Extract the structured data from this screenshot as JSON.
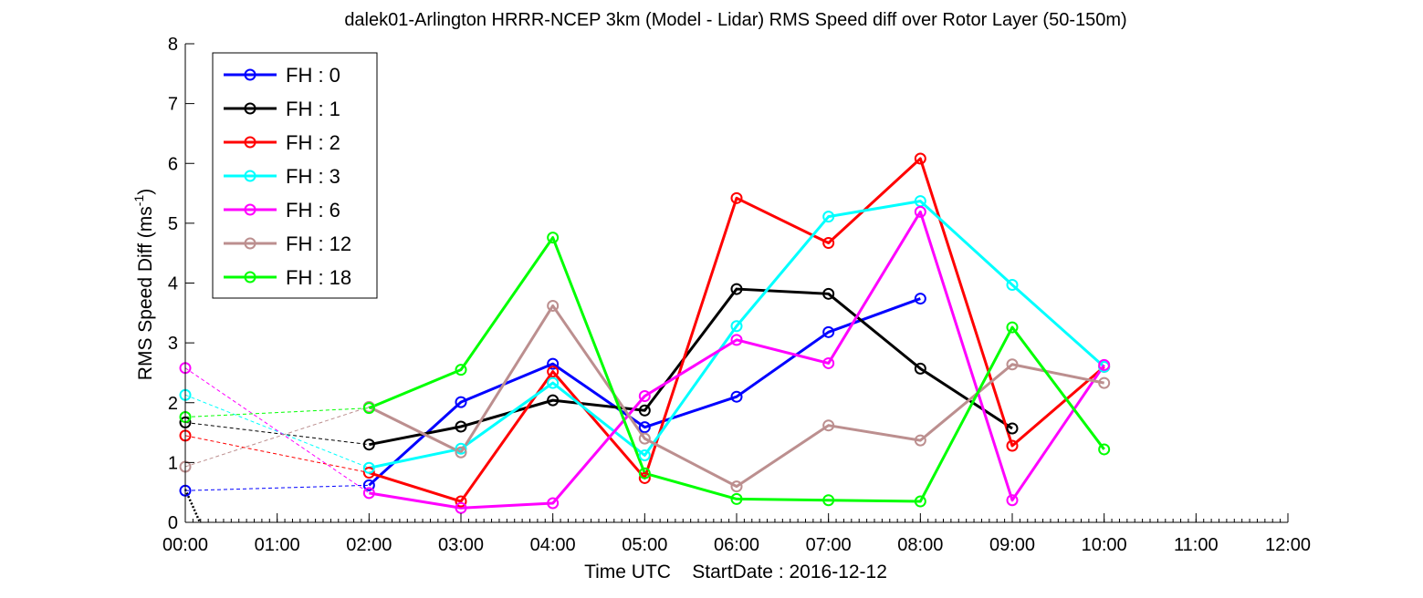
{
  "chart_data": {
    "type": "line",
    "title": "dalek01-Arlington HRRR-NCEP 3km (Model - Lidar) RMS Speed diff over Rotor Layer (50-150m)",
    "xlabel": "Time UTC    StartDate : 2016-12-12",
    "ylabel": "RMS Speed Diff (ms",
    "ylabel_sup": "-1",
    "ylabel_tail": ")",
    "xlim": [
      0,
      12
    ],
    "ylim": [
      0,
      8
    ],
    "x_ticks": [
      0,
      1,
      2,
      3,
      4,
      5,
      6,
      7,
      8,
      9,
      10,
      11,
      12
    ],
    "x_tick_labels": [
      "00:00",
      "01:00",
      "02:00",
      "03:00",
      "04:00",
      "05:00",
      "06:00",
      "07:00",
      "08:00",
      "09:00",
      "10:00",
      "11:00",
      "12:00"
    ],
    "y_ticks": [
      0,
      1,
      2,
      3,
      4,
      5,
      6,
      7,
      8
    ],
    "grid": false,
    "legend_position": "top-left",
    "series": [
      {
        "name": "FH : 0",
        "color": "#0000ff",
        "initial": 0.53,
        "x": [
          2,
          3,
          4,
          5,
          6,
          7,
          8
        ],
        "values": [
          0.62,
          2.01,
          2.65,
          1.59,
          2.1,
          3.18,
          3.74
        ]
      },
      {
        "name": "FH : 1",
        "color": "#000000",
        "initial": 1.67,
        "x": [
          2,
          3,
          4,
          5,
          6,
          7,
          8,
          9
        ],
        "values": [
          1.3,
          1.6,
          2.04,
          1.87,
          3.9,
          3.82,
          2.57,
          1.57
        ]
      },
      {
        "name": "FH : 2",
        "color": "#ff0000",
        "initial": 1.45,
        "x": [
          2,
          3,
          4,
          5,
          6,
          7,
          8,
          9,
          10
        ],
        "values": [
          0.83,
          0.35,
          2.52,
          0.74,
          5.42,
          4.67,
          6.08,
          1.28,
          2.6
        ]
      },
      {
        "name": "FH : 3",
        "color": "#00ffff",
        "initial": 2.13,
        "x": [
          2,
          3,
          4,
          5,
          6,
          7,
          8,
          9,
          10
        ],
        "values": [
          0.91,
          1.23,
          2.33,
          1.12,
          3.28,
          5.11,
          5.37,
          3.97,
          2.6
        ]
      },
      {
        "name": "FH : 6",
        "color": "#ff00ff",
        "initial": 2.58,
        "x": [
          2,
          3,
          4,
          5,
          6,
          7,
          8,
          9,
          10
        ],
        "values": [
          0.49,
          0.24,
          0.32,
          2.11,
          3.05,
          2.66,
          5.19,
          0.37,
          2.63
        ]
      },
      {
        "name": "FH : 12",
        "color": "#bc8f8f",
        "initial": 0.93,
        "x": [
          2,
          3,
          4,
          5,
          6,
          7,
          8,
          9,
          10
        ],
        "values": [
          1.93,
          1.17,
          3.62,
          1.4,
          0.6,
          1.62,
          1.37,
          2.64,
          2.33
        ]
      },
      {
        "name": "FH : 18",
        "color": "#00ff00",
        "initial": 1.76,
        "x": [
          2,
          3,
          4,
          5,
          6,
          7,
          8,
          9,
          10
        ],
        "values": [
          1.91,
          2.55,
          4.76,
          0.82,
          0.39,
          0.37,
          0.35,
          3.26,
          1.22
        ]
      }
    ]
  }
}
